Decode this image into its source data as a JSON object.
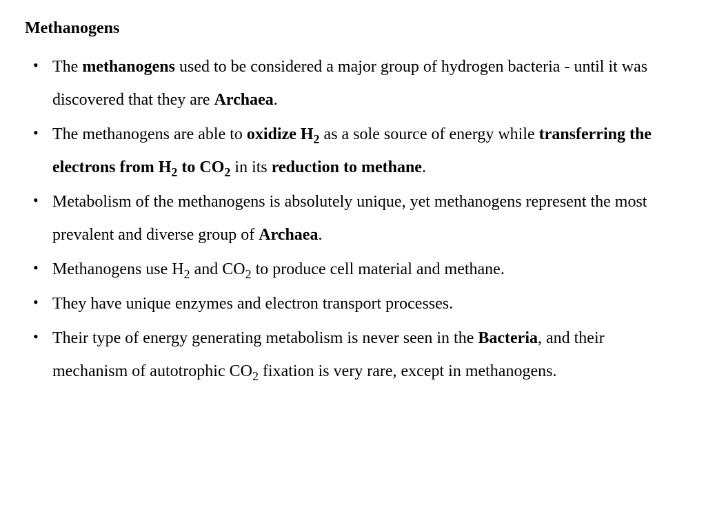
{
  "title": "Methanogens",
  "bullets": {
    "b1": {
      "t1": "The ",
      "t2": "methanogens",
      "t3": " used to be considered a major group of hydrogen bacteria - until it was discovered that they are ",
      "t4": "Archaea",
      "t5": "."
    },
    "b2": {
      "t1": "The methanogens are able to ",
      "t2": "oxidize H",
      "t3": "2",
      "t4": " as a sole source of energy while ",
      "t5": "transferring the electrons from H",
      "t6": "2",
      "t7": " to CO",
      "t8": "2",
      "t9": " in its ",
      "t10": "reduction to methane",
      "t11": "."
    },
    "b3": {
      "t1": "Metabolism of the methanogens is absolutely unique, yet methanogens represent the most prevalent and diverse group of ",
      "t2": "Archaea",
      "t3": "."
    },
    "b4": {
      "t1": "Methanogens use H",
      "t2": "2",
      "t3": " and CO",
      "t4": "2",
      "t5": " to produce cell material and methane."
    },
    "b5": {
      "t1": "They have unique enzymes and electron transport processes."
    },
    "b6": {
      "t1": "Their type of energy generating metabolism is never seen in the ",
      "t2": "Bacteria",
      "t3": ", and their mechanism of autotrophic CO",
      "t4": "2",
      "t5": " fixation is very rare, except in methanogens."
    }
  },
  "styling": {
    "background_color": "#ffffff",
    "text_color": "#000000",
    "font_family": "Times New Roman",
    "title_fontsize": 24,
    "body_fontsize": 24,
    "line_height": 2.0
  }
}
